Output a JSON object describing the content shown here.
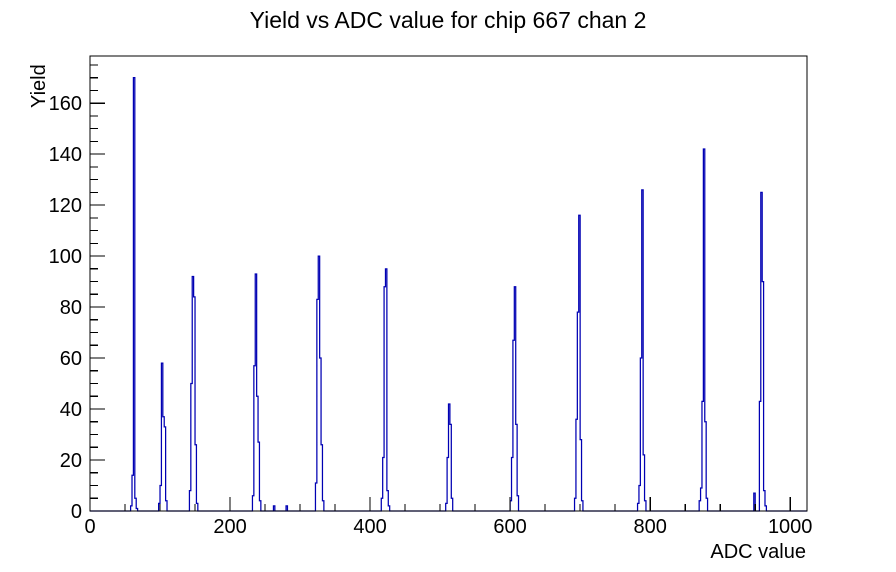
{
  "chart_data": {
    "type": "bar",
    "subtype": "step-histogram",
    "title": "Yield vs ADC value for chip 667 chan 2",
    "xlabel": "ADC value",
    "ylabel": "Yield",
    "x_range": [
      0,
      1024
    ],
    "y_range": [
      0,
      178.5
    ],
    "x_major_tick_step": 200,
    "x_minor_tick_step": 50,
    "y_major_tick_step": 20,
    "y_minor_tick_step": 5,
    "x_tick_labels": [
      "0",
      "200",
      "400",
      "600",
      "800",
      "1000"
    ],
    "y_tick_labels": [
      "0",
      "20",
      "40",
      "60",
      "80",
      "100",
      "120",
      "140",
      "160"
    ],
    "grid": false,
    "legend": "none",
    "series_color": "#0000b3",
    "frame_color": "#000000",
    "background_color": "#ffffff",
    "bin_width": 2,
    "bins": [
      {
        "start": 58,
        "values": [
          2,
          14,
          170,
          5,
          1
        ]
      },
      {
        "start": 98,
        "values": [
          3,
          10,
          58,
          37,
          33,
          4
        ]
      },
      {
        "start": 142,
        "values": [
          8,
          50,
          92,
          84,
          26,
          3
        ]
      },
      {
        "start": 232,
        "values": [
          6,
          57,
          93,
          45,
          27,
          4
        ]
      },
      {
        "start": 262,
        "values": [
          2
        ]
      },
      {
        "start": 280,
        "values": [
          2
        ]
      },
      {
        "start": 322,
        "values": [
          11,
          83,
          100,
          60,
          26,
          4
        ]
      },
      {
        "start": 416,
        "values": [
          5,
          21,
          88,
          95,
          8,
          2
        ]
      },
      {
        "start": 508,
        "values": [
          3,
          21,
          42,
          34,
          5
        ]
      },
      {
        "start": 600,
        "values": [
          4,
          21,
          67,
          88,
          34,
          6
        ]
      },
      {
        "start": 692,
        "values": [
          5,
          36,
          78,
          116,
          28,
          4
        ]
      },
      {
        "start": 782,
        "values": [
          3,
          10,
          60,
          126,
          22,
          4
        ]
      },
      {
        "start": 870,
        "values": [
          4,
          9,
          43,
          142,
          35,
          5
        ]
      },
      {
        "start": 948,
        "values": [
          7
        ]
      },
      {
        "start": 956,
        "values": [
          43,
          125,
          90,
          8,
          2
        ]
      }
    ],
    "peaks_summary": [
      {
        "adc": 63,
        "yield": 170
      },
      {
        "adc": 103,
        "yield": 58
      },
      {
        "adc": 147,
        "yield": 92
      },
      {
        "adc": 237,
        "yield": 93
      },
      {
        "adc": 327,
        "yield": 100
      },
      {
        "adc": 422,
        "yield": 95
      },
      {
        "adc": 513,
        "yield": 42
      },
      {
        "adc": 606,
        "yield": 88
      },
      {
        "adc": 698,
        "yield": 116
      },
      {
        "adc": 788,
        "yield": 126
      },
      {
        "adc": 876,
        "yield": 142
      },
      {
        "adc": 959,
        "yield": 125
      }
    ]
  }
}
